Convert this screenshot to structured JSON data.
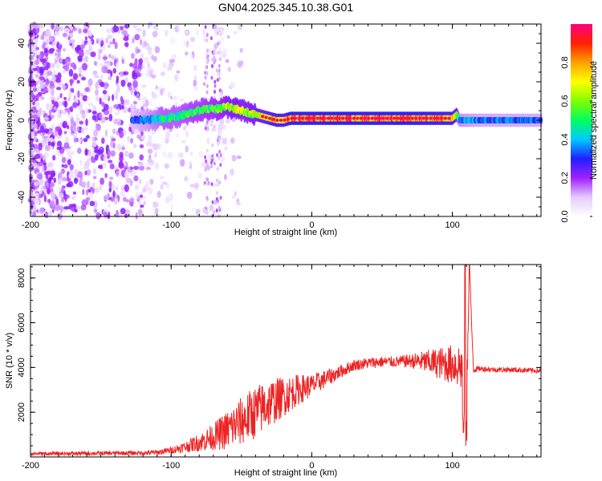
{
  "title": "GN04.2025.345.10.38.G01",
  "colorbar": {
    "label": "Normalized spectral amplitude",
    "ticks": [
      0.0,
      0.2,
      0.4,
      0.6,
      0.8
    ],
    "tick_labels": [
      "0.0",
      "0.2",
      "0.4",
      "0.6",
      "0.8"
    ],
    "range": [
      0,
      1
    ],
    "colors": [
      "#ffffff",
      "#e4ccff",
      "#a020ff",
      "#2020ff",
      "#00c8ff",
      "#00ff60",
      "#80ff00",
      "#ffff00",
      "#ffa000",
      "#ff2000",
      "#ff0080"
    ]
  },
  "chart_data": [
    {
      "type": "heatmap",
      "name": "spectrogram",
      "xlabel": "Height of straight line (km)",
      "ylabel": "Frequency (Hz)",
      "xlim": [
        -200,
        163
      ],
      "ylim": [
        -50,
        50
      ],
      "xticks": [
        -200,
        -100,
        0,
        100
      ],
      "xtick_labels": [
        "-200",
        "-100",
        "0",
        "100"
      ],
      "yticks": [
        -40,
        -20,
        0,
        20,
        40
      ],
      "ytick_labels": [
        "-40",
        "-20",
        "0",
        "20",
        "40"
      ],
      "ridge": {
        "x": [
          -128,
          -115,
          -105,
          -95,
          -85,
          -75,
          -65,
          -60,
          -55,
          -45,
          -35,
          -25,
          -20,
          -15,
          0,
          20,
          40,
          60,
          80,
          100,
          103,
          105,
          120,
          140,
          163
        ],
        "y": [
          0,
          0,
          1,
          2,
          4,
          6,
          6,
          7,
          6,
          4,
          2,
          0,
          0,
          1,
          1,
          1,
          1,
          1,
          1,
          1,
          3,
          0,
          0,
          0,
          0
        ],
        "amplitude": [
          0.35,
          0.45,
          0.55,
          0.55,
          0.6,
          0.62,
          0.65,
          0.72,
          0.75,
          0.72,
          0.8,
          0.9,
          0.85,
          0.95,
          0.95,
          0.97,
          0.95,
          0.97,
          0.95,
          0.9,
          0.8,
          0.45,
          0.4,
          0.4,
          0.4
        ]
      },
      "noise_region_x": [
        -200,
        -60
      ],
      "color_source": "colorbar.colors"
    },
    {
      "type": "line",
      "name": "snr",
      "xlabel": "Height of straight line (km)",
      "ylabel": "SNR (10 * v/v)",
      "xlim": [
        -200,
        163
      ],
      "ylim": [
        0,
        8600
      ],
      "xticks": [
        -200,
        -100,
        0,
        100
      ],
      "xtick_labels": [
        "-200",
        "-100",
        "0",
        "100"
      ],
      "yticks": [
        2000,
        4000,
        6000,
        8000
      ],
      "ytick_labels": [
        "2000",
        "4000",
        "6000",
        "8000"
      ],
      "color": "#ee2222",
      "series": [
        {
          "name": "SNR",
          "x": [
            -200,
            -180,
            -160,
            -140,
            -120,
            -110,
            -100,
            -90,
            -80,
            -70,
            -60,
            -50,
            -40,
            -30,
            -20,
            -10,
            0,
            10,
            20,
            30,
            40,
            50,
            60,
            70,
            80,
            90,
            95,
            100,
            105,
            107,
            108,
            110,
            112,
            115,
            120,
            130,
            140,
            150,
            163
          ],
          "y": [
            150,
            150,
            160,
            170,
            180,
            200,
            300,
            450,
            650,
            900,
            1200,
            1600,
            2000,
            2400,
            2700,
            3000,
            3200,
            3500,
            3800,
            4100,
            4200,
            4250,
            4250,
            4300,
            4250,
            4200,
            4150,
            4150,
            4100,
            4000,
            3000,
            1500,
            8600,
            3900,
            3950,
            3900,
            3900,
            3880,
            3850
          ],
          "noise_amplitude": [
            80,
            80,
            90,
            90,
            100,
            120,
            150,
            250,
            400,
            600,
            900,
            1100,
            1200,
            1100,
            900,
            700,
            500,
            400,
            300,
            250,
            250,
            250,
            250,
            300,
            500,
            700,
            800,
            900,
            1100,
            1200,
            1500,
            2000,
            600,
            150,
            120,
            120,
            120,
            120,
            120
          ]
        }
      ]
    }
  ]
}
